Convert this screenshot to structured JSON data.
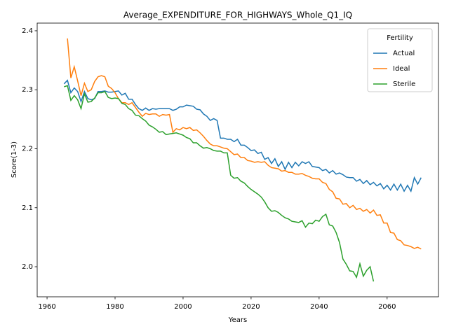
{
  "chart_data": {
    "type": "line",
    "title": "Average_EXPENDITURE_FOR_HIGHWAYS_Whole_Q1_IQ",
    "x_label": "Years",
    "y_label": "Score(1-3)",
    "legend_title": "Fertility",
    "legend": "upper right",
    "x": [
      1965,
      1966,
      1967,
      1968,
      1969,
      1970,
      1971,
      1972,
      1973,
      1974,
      1975,
      1976,
      1977,
      1978,
      1979,
      1980,
      1981,
      1982,
      1983,
      1984,
      1985,
      1986,
      1987,
      1988,
      1989,
      1990,
      1991,
      1992,
      1993,
      1994,
      1995,
      1996,
      1997,
      1998,
      1999,
      2000,
      2001,
      2002,
      2003,
      2004,
      2005,
      2006,
      2007,
      2008,
      2009,
      2010,
      2011,
      2012,
      2013,
      2014,
      2015,
      2016,
      2017,
      2018,
      2019,
      2020,
      2021,
      2022,
      2023,
      2024,
      2025,
      2026,
      2027,
      2028,
      2029,
      2030,
      2031,
      2032,
      2033,
      2034,
      2035,
      2036,
      2037,
      2038,
      2039,
      2040,
      2041,
      2042,
      2043,
      2044,
      2045,
      2046,
      2047,
      2048,
      2049,
      2050,
      2051,
      2052,
      2053,
      2054,
      2055,
      2056,
      2057,
      2058,
      2059,
      2060,
      2061,
      2062,
      2063,
      2064,
      2065,
      2066,
      2067,
      2068,
      2069,
      2070
    ],
    "series": [
      {
        "name": "Actual",
        "color": "#1f77b4",
        "values": [
          2.31,
          2.316,
          2.295,
          2.303,
          2.297,
          2.28,
          2.297,
          2.285,
          2.283,
          2.285,
          2.297,
          2.297,
          2.298,
          2.296,
          2.296,
          2.297,
          2.298,
          2.291,
          2.294,
          2.284,
          2.284,
          2.275,
          2.268,
          2.265,
          2.269,
          2.265,
          2.268,
          2.267,
          2.268,
          2.268,
          2.268,
          2.268,
          2.265,
          2.267,
          2.271,
          2.271,
          2.274,
          2.273,
          2.272,
          2.267,
          2.266,
          2.259,
          2.255,
          2.248,
          2.251,
          2.248,
          2.218,
          2.218,
          2.216,
          2.216,
          2.212,
          2.216,
          2.206,
          2.206,
          2.202,
          2.197,
          2.198,
          2.192,
          2.194,
          2.182,
          2.185,
          2.175,
          2.183,
          2.17,
          2.178,
          2.165,
          2.177,
          2.168,
          2.177,
          2.171,
          2.178,
          2.175,
          2.178,
          2.17,
          2.169,
          2.168,
          2.163,
          2.165,
          2.159,
          2.163,
          2.157,
          2.159,
          2.156,
          2.152,
          2.151,
          2.151,
          2.145,
          2.148,
          2.141,
          2.146,
          2.139,
          2.143,
          2.137,
          2.141,
          2.132,
          2.138,
          2.13,
          2.14,
          2.13,
          2.14,
          2.128,
          2.138,
          2.128,
          2.151,
          2.14,
          2.151
        ]
      },
      {
        "name": "Ideal",
        "color": "#ff7f0e",
        "values": [
          null,
          2.387,
          2.32,
          2.339,
          2.315,
          2.29,
          2.311,
          2.297,
          2.3,
          2.314,
          2.322,
          2.324,
          2.322,
          2.306,
          2.302,
          2.295,
          2.285,
          2.278,
          2.278,
          2.275,
          2.278,
          2.27,
          2.262,
          2.255,
          2.26,
          2.258,
          2.259,
          2.259,
          2.255,
          2.258,
          2.257,
          2.258,
          2.228,
          2.234,
          2.232,
          2.236,
          2.234,
          2.236,
          2.231,
          2.232,
          2.227,
          2.221,
          2.214,
          2.208,
          2.205,
          2.205,
          2.203,
          2.201,
          2.2,
          2.195,
          2.19,
          2.191,
          2.185,
          2.185,
          2.18,
          2.179,
          2.177,
          2.178,
          2.177,
          2.178,
          2.172,
          2.168,
          2.167,
          2.166,
          2.162,
          2.163,
          2.16,
          2.16,
          2.157,
          2.157,
          2.158,
          2.155,
          2.153,
          2.15,
          2.149,
          2.149,
          2.143,
          2.141,
          2.131,
          2.127,
          2.116,
          2.115,
          2.106,
          2.107,
          2.1,
          2.104,
          2.097,
          2.099,
          2.094,
          2.097,
          2.091,
          2.096,
          2.087,
          2.088,
          2.074,
          2.074,
          2.058,
          2.057,
          2.046,
          2.044,
          2.037,
          2.036,
          2.034,
          2.031,
          2.033,
          2.03
        ]
      },
      {
        "name": "Sterile",
        "color": "#2ca02c",
        "values": [
          2.305,
          2.307,
          2.282,
          2.29,
          2.283,
          2.268,
          2.293,
          2.279,
          2.28,
          2.286,
          2.295,
          2.295,
          2.297,
          2.287,
          2.285,
          2.286,
          2.285,
          2.277,
          2.275,
          2.268,
          2.265,
          2.257,
          2.256,
          2.251,
          2.247,
          2.24,
          2.237,
          2.233,
          2.228,
          2.229,
          2.224,
          2.225,
          2.226,
          2.227,
          2.225,
          2.223,
          2.219,
          2.217,
          2.21,
          2.21,
          2.205,
          2.201,
          2.202,
          2.2,
          2.197,
          2.196,
          2.196,
          2.193,
          2.193,
          2.155,
          2.15,
          2.151,
          2.145,
          2.142,
          2.136,
          2.131,
          2.127,
          2.123,
          2.118,
          2.11,
          2.1,
          2.094,
          2.095,
          2.092,
          2.087,
          2.083,
          2.081,
          2.077,
          2.076,
          2.075,
          2.078,
          2.067,
          2.074,
          2.073,
          2.079,
          2.077,
          2.085,
          2.089,
          2.071,
          2.069,
          2.058,
          2.041,
          2.013,
          2.004,
          1.993,
          1.992,
          1.982,
          2.005,
          1.984,
          1.994,
          2.0,
          1.975,
          null,
          null,
          null,
          null,
          null,
          null,
          null,
          null,
          null,
          null,
          null,
          null,
          null,
          null
        ]
      }
    ],
    "xlim": [
      1957.1,
      2075.1
    ],
    "ylim": [
      1.949,
      2.413
    ],
    "xticks": [
      1960,
      1980,
      2000,
      2020,
      2040,
      2060
    ],
    "yticks": [
      {
        "value": 2.0,
        "label": "2.0"
      },
      2.1,
      2.2,
      2.3,
      2.4
    ]
  }
}
